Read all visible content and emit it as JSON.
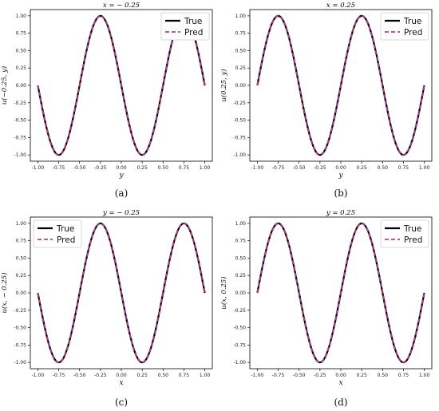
{
  "chart_data": [
    {
      "type": "line",
      "caption": "(a)",
      "title": "x = − 0.25",
      "xlabel": "y",
      "ylabel": "u(−0.25, y)",
      "xlim": [
        -1.0,
        1.0
      ],
      "ylim": [
        -1.0,
        1.0
      ],
      "xticks": [
        "-1.00",
        "-0.75",
        "-0.50",
        "-0.25",
        "0.00",
        "0.25",
        "0.50",
        "0.75",
        "1.00"
      ],
      "yticks": [
        "-1.00",
        "-0.75",
        "-0.50",
        "-0.25",
        "0.00",
        "0.25",
        "0.50",
        "0.75",
        "1.00"
      ],
      "grid": false,
      "legend": "top-right",
      "x": [
        -1.0,
        -0.75,
        -0.5,
        -0.25,
        0.0,
        0.25,
        0.5,
        0.75,
        1.0
      ],
      "series": [
        {
          "name": "True",
          "color": "#000000",
          "style": "solid",
          "values": [
            0,
            -1,
            0,
            1,
            0,
            -1,
            0,
            1,
            0
          ]
        },
        {
          "name": "Pred",
          "color": "#c0399a",
          "style": "dashed",
          "values": [
            0,
            -1,
            0,
            1,
            0,
            -1,
            0,
            1,
            0
          ]
        }
      ]
    },
    {
      "type": "line",
      "caption": "(b)",
      "title": "x = 0.25",
      "xlabel": "y",
      "ylabel": "u(0.25, y)",
      "xlim": [
        -1.0,
        1.0
      ],
      "ylim": [
        -1.0,
        1.0
      ],
      "xticks": [
        "-1.00",
        "-0.75",
        "-0.50",
        "-0.25",
        "0.00",
        "0.25",
        "0.50",
        "0.75",
        "1.00"
      ],
      "yticks": [
        "-1.00",
        "-0.75",
        "-0.50",
        "-0.25",
        "0.00",
        "0.25",
        "0.50",
        "0.75",
        "1.00"
      ],
      "grid": false,
      "legend": "top-right",
      "x": [
        -1.0,
        -0.75,
        -0.5,
        -0.25,
        0.0,
        0.25,
        0.5,
        0.75,
        1.0
      ],
      "series": [
        {
          "name": "True",
          "color": "#000000",
          "style": "solid",
          "values": [
            0,
            1,
            0,
            -1,
            0,
            1,
            0,
            -1,
            0
          ]
        },
        {
          "name": "Pred",
          "color": "#c0399a",
          "style": "dashed",
          "values": [
            0,
            1,
            0,
            -1,
            0,
            1,
            0,
            -1,
            0
          ]
        }
      ]
    },
    {
      "type": "line",
      "caption": "(c)",
      "title": "y = − 0.25",
      "xlabel": "x",
      "ylabel": "u(x, − 0.25)",
      "xlim": [
        -1.0,
        1.0
      ],
      "ylim": [
        -1.0,
        1.0
      ],
      "xticks": [
        "-1.00",
        "-0.75",
        "-0.50",
        "-0.25",
        "0.00",
        "0.25",
        "0.50",
        "0.75",
        "1.00"
      ],
      "yticks": [
        "-1.00",
        "-0.75",
        "-0.50",
        "-0.25",
        "0.00",
        "0.25",
        "0.50",
        "0.75",
        "1.00"
      ],
      "grid": false,
      "legend": "top-left",
      "x": [
        -1.0,
        -0.75,
        -0.5,
        -0.25,
        0.0,
        0.25,
        0.5,
        0.75,
        1.0
      ],
      "series": [
        {
          "name": "True",
          "color": "#000000",
          "style": "solid",
          "values": [
            0,
            -1,
            0,
            1,
            0,
            -1,
            0,
            1,
            0
          ]
        },
        {
          "name": "Pred",
          "color": "#c0399a",
          "style": "dashed",
          "values": [
            0,
            -1,
            0,
            1,
            0,
            -1,
            0,
            1,
            0
          ]
        }
      ]
    },
    {
      "type": "line",
      "caption": "(d)",
      "title": "y = 0.25",
      "xlabel": "x",
      "ylabel": "u(x, 0.25)",
      "xlim": [
        -1.0,
        1.0
      ],
      "ylim": [
        -1.0,
        1.0
      ],
      "xticks": [
        "-1.00",
        "-0.75",
        "-0.50",
        "-0.25",
        "0.00",
        "0.25",
        "0.50",
        "0.75",
        "1.00"
      ],
      "yticks": [
        "-1.00",
        "-0.75",
        "-0.50",
        "-0.25",
        "0.00",
        "0.25",
        "0.50",
        "0.75",
        "1.00"
      ],
      "grid": false,
      "legend": "top-right",
      "x": [
        -1.0,
        -0.75,
        -0.5,
        -0.25,
        0.0,
        0.25,
        0.5,
        0.75,
        1.0
      ],
      "series": [
        {
          "name": "True",
          "color": "#000000",
          "style": "solid",
          "values": [
            0,
            1,
            0,
            -1,
            0,
            1,
            0,
            -1,
            0
          ]
        },
        {
          "name": "Pred",
          "color": "#c0399a",
          "style": "dashed",
          "values": [
            0,
            1,
            0,
            -1,
            0,
            1,
            0,
            -1,
            0
          ]
        }
      ]
    }
  ]
}
